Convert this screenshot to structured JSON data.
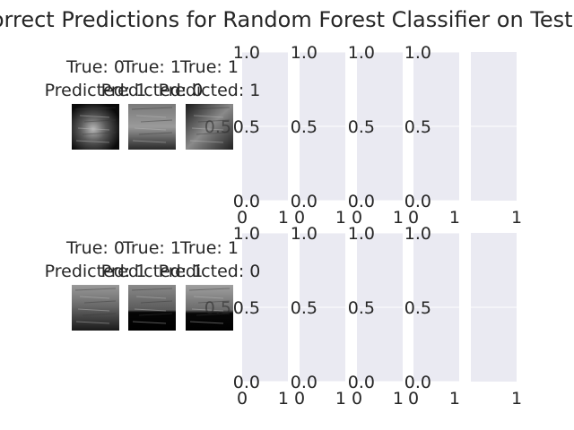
{
  "title": "Incorrect Predictions for Random Forest Classifier on Test Set",
  "colors": {
    "axes_facecolor": "#eaeaf2",
    "grid": "#ffffff",
    "text": "#262626",
    "figure_bg": "#ffffff"
  },
  "chart_data": {
    "type": "image-grid",
    "title": "Incorrect Predictions for Random Forest Classifier on Test Set",
    "rows": [
      {
        "images": [
          {
            "true_label": "True: 0",
            "predicted_label": "Predicted: 1",
            "icon": "grayscale-ultrasound-image"
          },
          {
            "true_label": "True: 1",
            "predicted_label": "Predicted: 0",
            "icon": "grayscale-ultrasound-image"
          },
          {
            "true_label": "True: 1",
            "predicted_label": "Predicted: 1",
            "icon": "grayscale-ultrasound-image"
          }
        ],
        "empty_axes_count": 5
      },
      {
        "images": [
          {
            "true_label": "True: 0",
            "predicted_label": "Predicted: 1",
            "icon": "grayscale-ultrasound-image"
          },
          {
            "true_label": "True: 1",
            "predicted_label": "Predicted: 1",
            "icon": "grayscale-ultrasound-image"
          },
          {
            "true_label": "True: 1",
            "predicted_label": "Predicted: 0",
            "icon": "grayscale-ultrasound-image"
          }
        ],
        "empty_axes_count": 5
      }
    ],
    "empty_axes": {
      "ylim": [
        0,
        1
      ],
      "yticks": [
        "0.0",
        "0.5",
        "1.0"
      ],
      "xticks": [
        "0",
        "1"
      ],
      "grid": true
    }
  }
}
